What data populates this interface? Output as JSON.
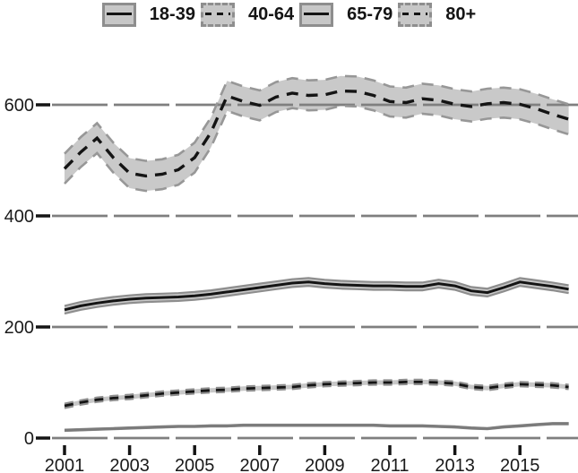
{
  "legend": {
    "items": [
      {
        "label": "18-39",
        "key_style": "solid"
      },
      {
        "label": "40-64",
        "key_style": "dashed"
      },
      {
        "label": "65-79",
        "key_style": "solid"
      },
      {
        "label": "80+",
        "key_style": "dashed"
      }
    ]
  },
  "colors": {
    "background": "#ffffff",
    "band_fill": "#c7c7c7",
    "band_fill_wide": "#c9c9c9",
    "band_edge": "#8e8e8e",
    "line_black": "#141414",
    "line_gray": "#7b7b7b",
    "gridline": "#7f7f7f",
    "axis_text": "#1a1a1a"
  },
  "chart_data": {
    "type": "line",
    "title": "",
    "xlabel": "",
    "ylabel": "",
    "legend_position": "top-center",
    "grid": "horizontal-dashed",
    "x_ticks": [
      2001,
      2003,
      2005,
      2007,
      2009,
      2011,
      2013,
      2015
    ],
    "y_ticks": [
      0,
      200,
      400,
      600
    ],
    "xlim": [
      2000.7,
      2016.8
    ],
    "ylim": [
      0,
      660
    ],
    "x": [
      2001,
      2001.5,
      2002,
      2002.5,
      2003,
      2003.5,
      2004,
      2004.5,
      2005,
      2005.5,
      2006,
      2006.5,
      2007,
      2007.5,
      2008,
      2008.5,
      2009,
      2009.5,
      2010,
      2010.5,
      2011,
      2011.5,
      2012,
      2012.5,
      2013,
      2013.5,
      2014,
      2014.5,
      2015,
      2015.5,
      2016,
      2016.5
    ],
    "series": [
      {
        "name": "18-39",
        "values": [
          14,
          15,
          16,
          17,
          18,
          19,
          20,
          21,
          21,
          22,
          22,
          23,
          23,
          23,
          23,
          23,
          23,
          23,
          23,
          23,
          22,
          22,
          22,
          21,
          20,
          18,
          17,
          20,
          22,
          24,
          26,
          26
        ],
        "ci": 1.6,
        "line_style": "solid",
        "line_color": "#7b7b7b",
        "line_width": 3,
        "band_color": "#c7c7c7",
        "edge_color": "#8e8e8e",
        "edge_width": 1.6,
        "dash": ""
      },
      {
        "name": "40-64",
        "values": [
          58,
          64,
          69,
          72,
          74,
          77,
          80,
          82,
          84,
          86,
          87,
          89,
          90,
          91,
          92,
          95,
          97,
          98,
          99,
          100,
          100,
          101,
          101,
          100,
          98,
          92,
          90,
          94,
          97,
          96,
          95,
          92
        ],
        "ci": 4,
        "line_style": "dashed",
        "line_color": "#141414",
        "line_width": 2.8,
        "band_color": "#c7c7c7",
        "edge_color": "#8e8e8e",
        "edge_width": 2.2,
        "dash": "10 7"
      },
      {
        "name": "65-79",
        "values": [
          231,
          238,
          243,
          247,
          250,
          252,
          253,
          254,
          256,
          259,
          263,
          267,
          271,
          275,
          279,
          281,
          278,
          276,
          275,
          274,
          274,
          273,
          273,
          278,
          274,
          265,
          262,
          271,
          281,
          277,
          273,
          268
        ],
        "ci": 7,
        "line_style": "solid",
        "line_color": "#141414",
        "line_width": 3,
        "band_color": "#c7c7c7",
        "edge_color": "#8e8e8e",
        "edge_width": 2.2,
        "dash": ""
      },
      {
        "name": "80+",
        "values": [
          485,
          515,
          540,
          505,
          477,
          472,
          475,
          483,
          505,
          550,
          616,
          606,
          599,
          614,
          621,
          617,
          618,
          625,
          624,
          617,
          606,
          604,
          611,
          608,
          601,
          597,
          602,
          604,
          601,
          593,
          583,
          574
        ],
        "ci": 27,
        "line_style": "dashed",
        "line_color": "#141414",
        "line_width": 3.4,
        "band_color": "#c9c9c9",
        "edge_color": "#979797",
        "edge_width": 2.6,
        "dash": "13 9"
      }
    ]
  }
}
